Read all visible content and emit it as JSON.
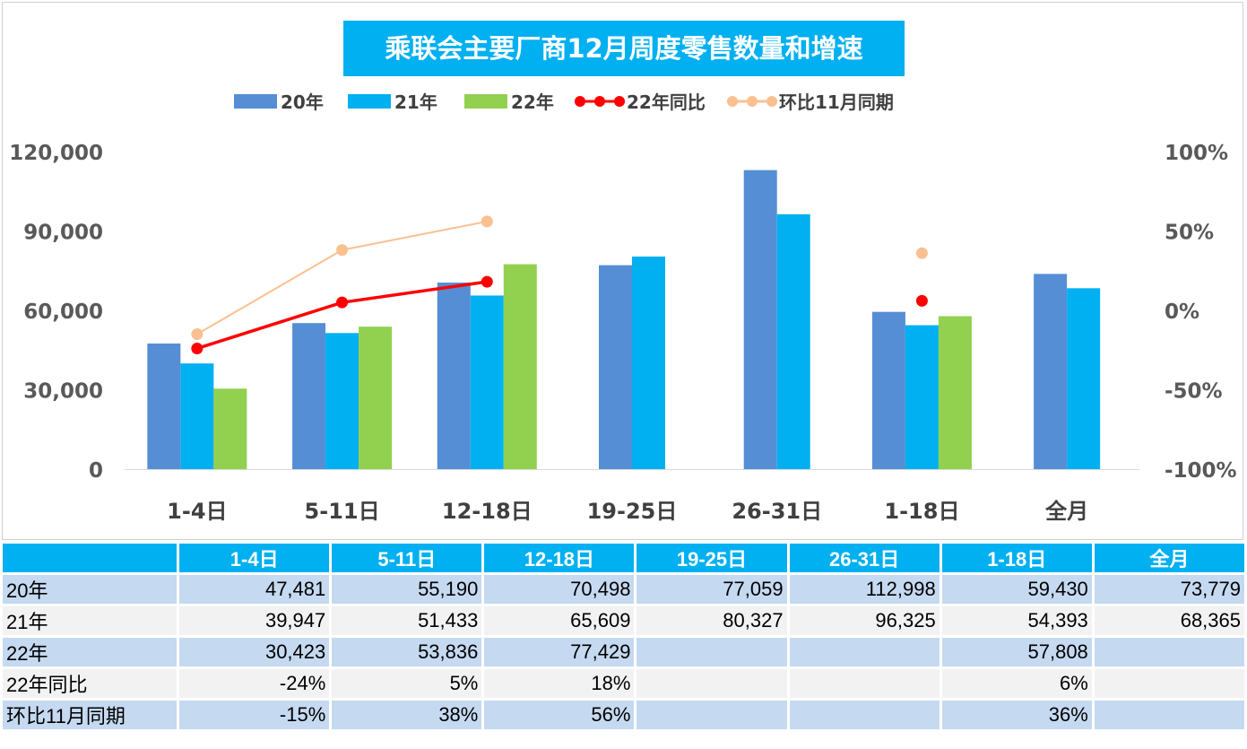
{
  "chart_data": {
    "type": "bar",
    "title": "乘联会主要厂商12月周度零售数量和增速",
    "categories": [
      "1-4日",
      "5-11日",
      "12-18日",
      "19-25日",
      "26-31日",
      "1-18日",
      "全月"
    ],
    "series": [
      {
        "name": "20年",
        "kind": "bar",
        "color": "#558ed5",
        "values": [
          47481,
          55190,
          70498,
          77059,
          112998,
          59430,
          73779
        ]
      },
      {
        "name": "21年",
        "kind": "bar",
        "color": "#00b0f0",
        "values": [
          39947,
          51433,
          65609,
          80327,
          96325,
          54393,
          68365
        ]
      },
      {
        "name": "22年",
        "kind": "bar",
        "color": "#92d050",
        "values": [
          30423,
          53836,
          77429,
          null,
          null,
          57808,
          null
        ]
      },
      {
        "name": "22年同比",
        "kind": "line",
        "axis": "right",
        "color": "#ff0000",
        "values": [
          -24,
          5,
          18,
          null,
          null,
          6,
          null
        ]
      },
      {
        "name": "环比11月同期",
        "kind": "line",
        "axis": "right",
        "color": "#fac090",
        "values": [
          -15,
          38,
          56,
          null,
          null,
          36,
          null
        ]
      }
    ],
    "y_left": {
      "min": 0,
      "max": 120000,
      "ticks": [
        0,
        30000,
        60000,
        90000,
        120000
      ],
      "tick_labels": [
        "0",
        "30,000",
        "60,000",
        "90,000",
        "120,000"
      ]
    },
    "y_right": {
      "min": -100,
      "max": 100,
      "ticks": [
        -100,
        -50,
        0,
        50,
        100
      ],
      "tick_labels": [
        "-100%",
        "-50%",
        "0%",
        "50%",
        "100%"
      ]
    },
    "grid": false,
    "legend": "top-center"
  },
  "table": {
    "headers": [
      "",
      "1-4日",
      "5-11日",
      "12-18日",
      "19-25日",
      "26-31日",
      "1-18日",
      "全月"
    ],
    "rows": [
      {
        "label": "20年",
        "cells": [
          "47,481",
          "55,190",
          "70,498",
          "77,059",
          "112,998",
          "59,430",
          "73,779"
        ]
      },
      {
        "label": "21年",
        "cells": [
          "39,947",
          "51,433",
          "65,609",
          "80,327",
          "96,325",
          "54,393",
          "68,365"
        ]
      },
      {
        "label": "22年",
        "cells": [
          "30,423",
          "53,836",
          "77,429",
          "",
          "",
          "57,808",
          ""
        ]
      },
      {
        "label": "22年同比",
        "cells": [
          "-24%",
          "5%",
          "18%",
          "",
          "",
          "6%",
          ""
        ]
      },
      {
        "label": "环比11月同期",
        "cells": [
          "-15%",
          "38%",
          "56%",
          "",
          "",
          "36%",
          ""
        ]
      }
    ]
  }
}
